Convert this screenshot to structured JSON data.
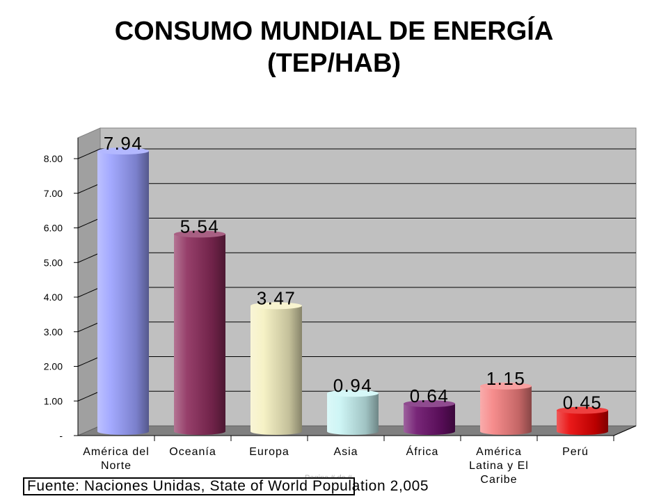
{
  "title_line1": "CONSUMO MUNDIAL DE ENERGÍA",
  "title_line2": "(TEP/HAB)",
  "footer_page": "Pagina # de #",
  "source": "Fuente: Naciones Unidas, State of World Population 2,005",
  "chart_data": {
    "type": "bar",
    "title": "CONSUMO MUNDIAL DE ENERGÍA (TEP/HAB)",
    "categories": [
      [
        "América del",
        "Norte"
      ],
      [
        "Oceanía"
      ],
      [
        "Europa"
      ],
      [
        "Asia"
      ],
      [
        "África"
      ],
      [
        "América",
        "Latina y El",
        "Caribe"
      ],
      [
        "Perú"
      ]
    ],
    "values": [
      7.94,
      5.54,
      3.47,
      0.94,
      0.64,
      1.15,
      0.45
    ],
    "data_labels": [
      "7.94",
      "5.54",
      "3.47",
      "0.94",
      "0.64",
      "1.15",
      "0.45"
    ],
    "colors": [
      "#9aa0ff",
      "#8b2b5a",
      "#f5f0c0",
      "#c8f4f4",
      "#6a0f6a",
      "#f58080",
      "#e80000"
    ],
    "ylim": [
      0,
      8.5
    ],
    "yticks": [
      0,
      1,
      2,
      3,
      4,
      5,
      6,
      7,
      8
    ],
    "ytick_labels": [
      "-",
      "1.00",
      "2.00",
      "3.00",
      "4.00",
      "5.00",
      "6.00",
      "7.00",
      "8.00"
    ],
    "grid": true,
    "plot_background": "#c0c0c0"
  }
}
